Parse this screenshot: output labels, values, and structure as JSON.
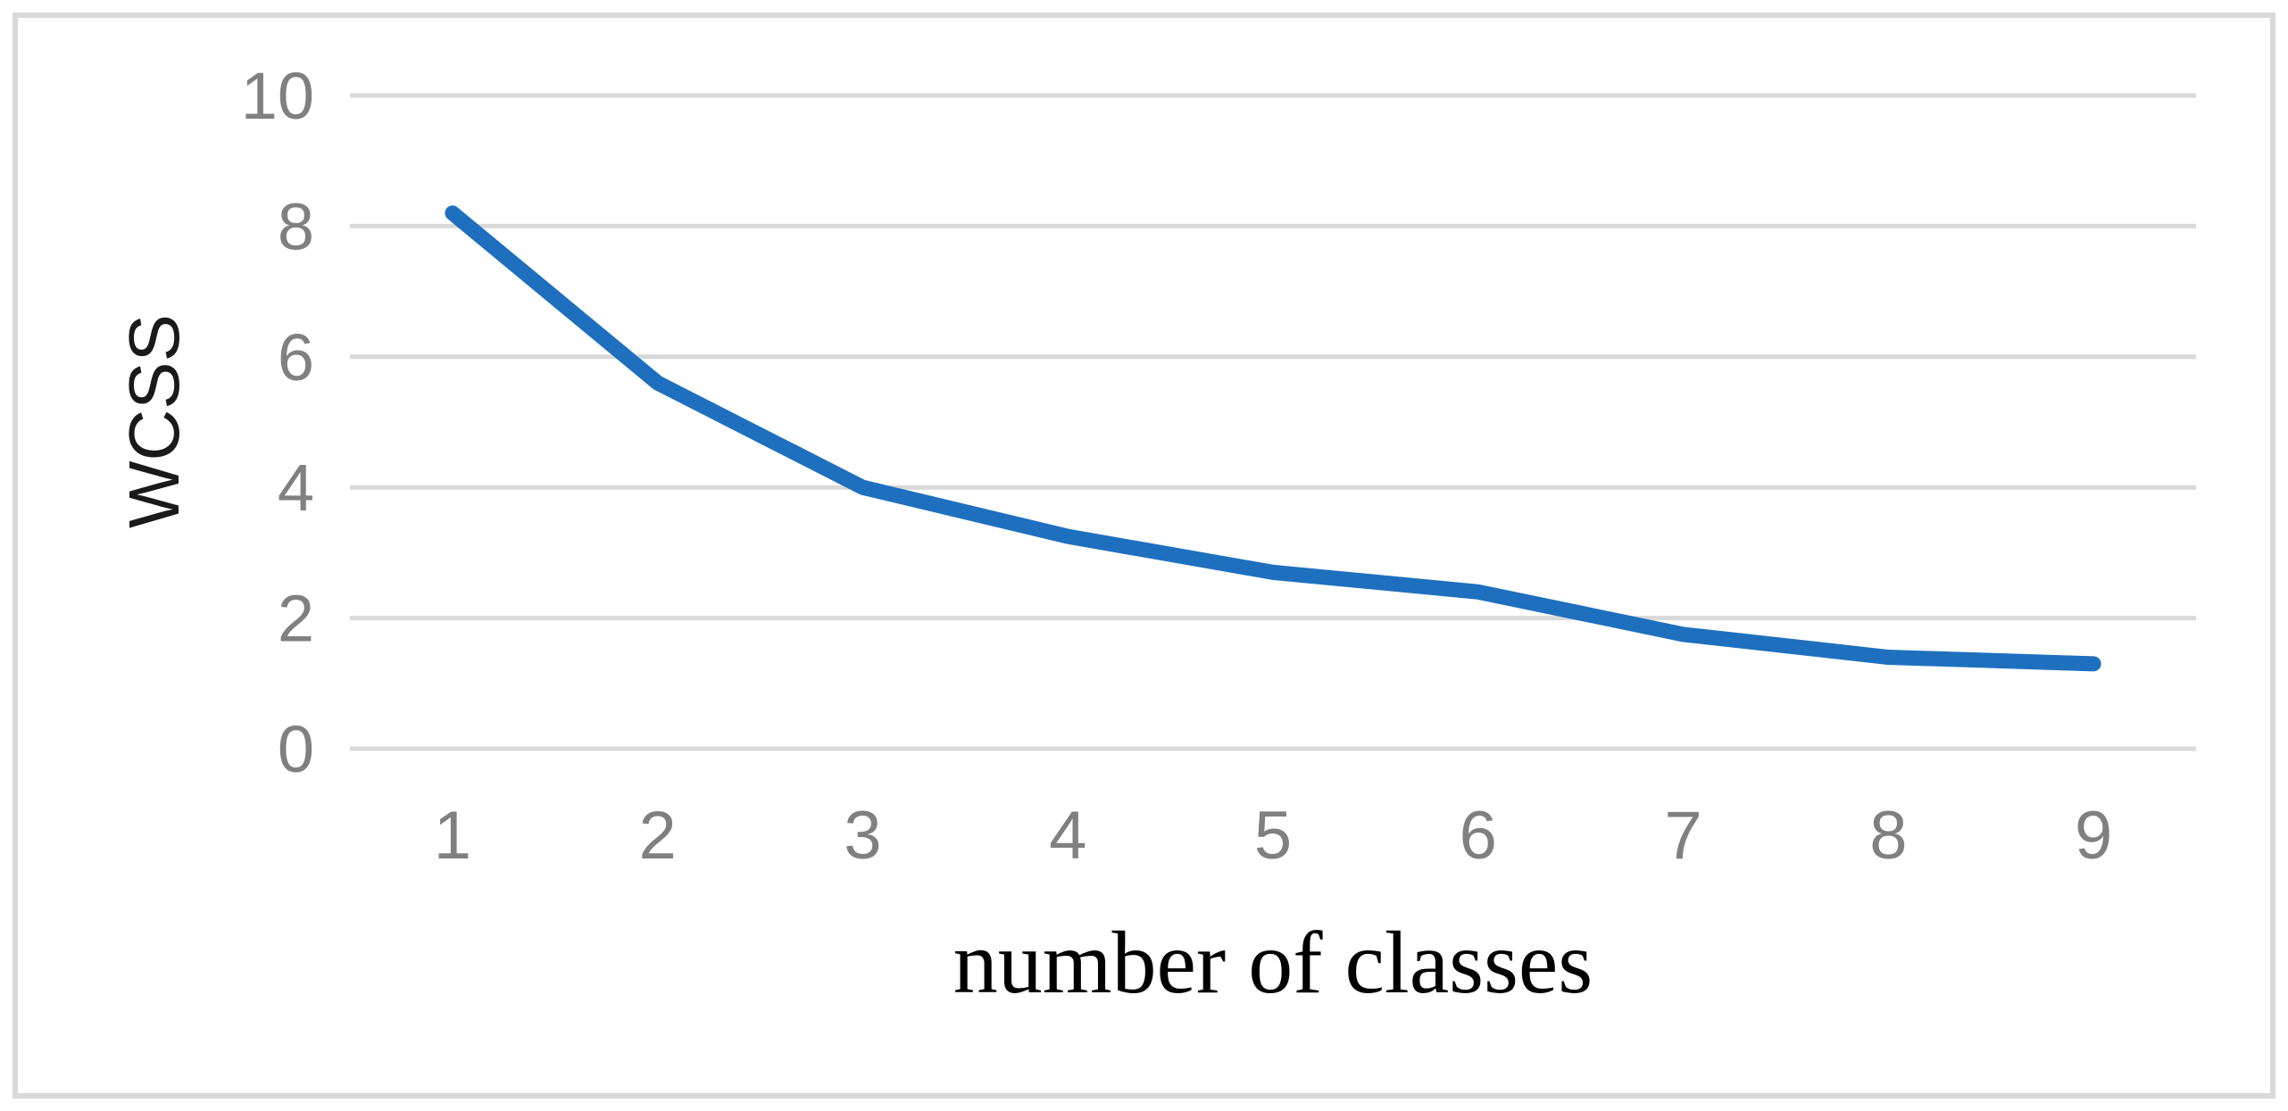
{
  "chart_data": {
    "type": "line",
    "title": "",
    "xlabel": "number of classes",
    "ylabel": "WCSS",
    "series": [
      {
        "name": "WCSS",
        "x": [
          1,
          2,
          3,
          4,
          5,
          6,
          7,
          8,
          9
        ],
        "values": [
          8.2,
          5.6,
          4.0,
          3.25,
          2.7,
          2.4,
          1.75,
          1.4,
          1.3
        ]
      }
    ],
    "xticks": [
      "1",
      "2",
      "3",
      "4",
      "5",
      "6",
      "7",
      "8",
      "9"
    ],
    "yticks": [
      0,
      2,
      4,
      6,
      8,
      10
    ],
    "xlim": [
      0.5,
      9.5
    ],
    "ylim": [
      0,
      10
    ],
    "grid": "horizontal-only",
    "legend_position": "none",
    "colors": {
      "line": "#1E70BF",
      "gridline": "#D9D9D9",
      "border": "#D9D9D9",
      "tick_label": "#808080",
      "y_axis_title": "#1A1A1A",
      "x_axis_title": "#000000",
      "background": "#FFFFFF"
    },
    "line_style": {
      "stroke_width": 17,
      "linecap": "round",
      "linejoin": "round",
      "markers": "none"
    }
  }
}
